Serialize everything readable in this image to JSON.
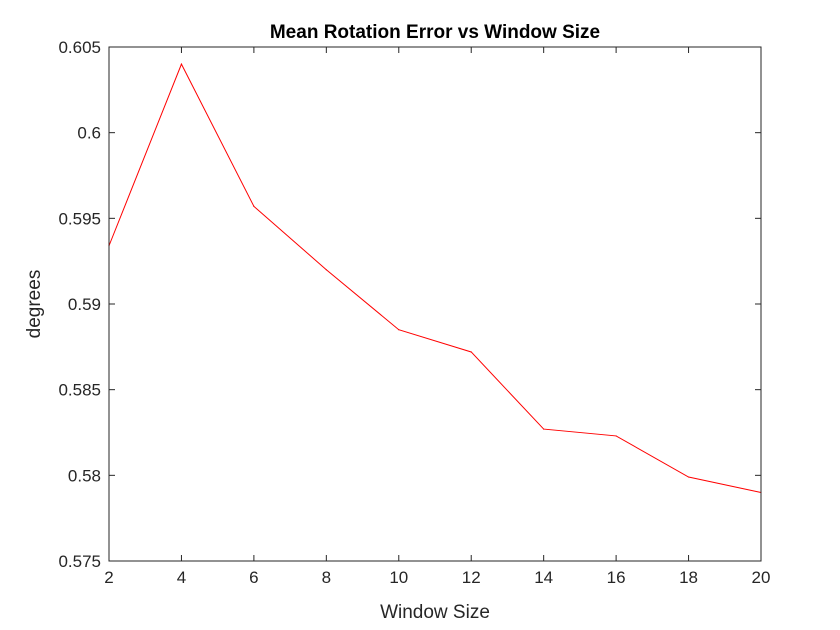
{
  "chart_data": {
    "type": "line",
    "title": "Mean Rotation Error vs Window Size",
    "xlabel": "Window Size",
    "ylabel": "degrees",
    "xlim": [
      2,
      20
    ],
    "ylim": [
      0.575,
      0.605
    ],
    "xticks": [
      2,
      4,
      6,
      8,
      10,
      12,
      14,
      16,
      18,
      20
    ],
    "yticks": [
      0.575,
      0.58,
      0.585,
      0.59,
      0.595,
      0.6,
      0.605
    ],
    "xtick_labels": [
      "2",
      "4",
      "6",
      "8",
      "10",
      "12",
      "14",
      "16",
      "18",
      "20"
    ],
    "ytick_labels": [
      "0.575",
      "0.58",
      "0.585",
      "0.59",
      "0.595",
      "0.6",
      "0.605"
    ],
    "grid": false,
    "series": [
      {
        "color": "#ff0000",
        "x": [
          2,
          4,
          6,
          8,
          10,
          12,
          14,
          16,
          18,
          20
        ],
        "y": [
          0.5934,
          0.604,
          0.5957,
          0.592,
          0.5885,
          0.5872,
          0.5827,
          0.5823,
          0.5799,
          0.579
        ]
      }
    ]
  }
}
